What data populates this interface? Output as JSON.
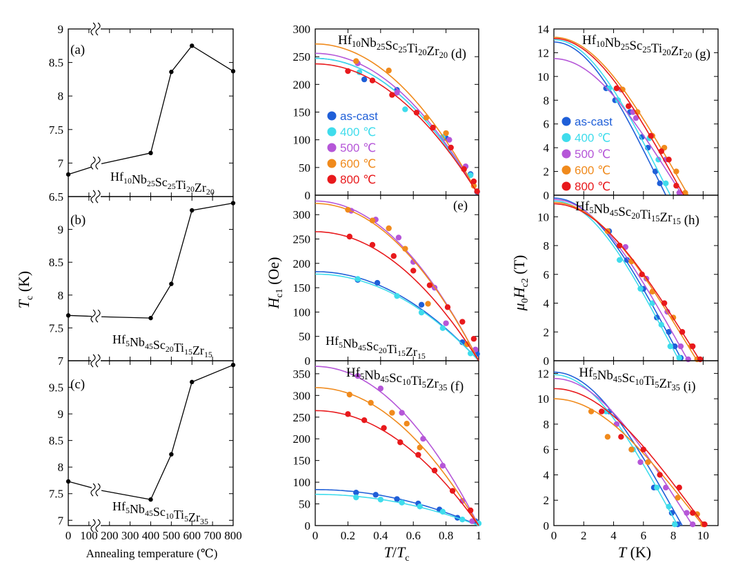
{
  "figure": {
    "x_label_left": "Annealing temperature (℃)",
    "x_label_mid_main": "T",
    "x_label_mid_sep": "/",
    "x_label_mid_den": "T",
    "x_label_mid_den_sub": "c",
    "x_label_right_main": "T",
    "x_label_right_unit": " (K)",
    "y_label_left_main": "T",
    "y_label_left_sub": "c",
    "y_label_left_unit": " (K)",
    "y_label_mid_main": "H",
    "y_label_mid_sub": "c1",
    "y_label_mid_unit": " (Oe)",
    "y_label_right_mu": "μ",
    "y_label_right_mu_sub": "0",
    "y_label_right_main": "H",
    "y_label_right_sub": "c2",
    "y_label_right_unit": " (T)"
  },
  "legend": [
    {
      "label": "as-cast",
      "color": "#1f5fd8"
    },
    {
      "label": "400 ℃",
      "color": "#3fdcec"
    },
    {
      "label": "500 ℃",
      "color": "#b556d8"
    },
    {
      "label": "600 ℃",
      "color": "#f08a1c"
    },
    {
      "label": "800 ℃",
      "color": "#e8191c"
    }
  ],
  "chart_data": [
    {
      "id": "a",
      "panel": "(a)",
      "type": "line",
      "compound": [
        [
          "Hf",
          "10"
        ],
        [
          "Nb",
          "25"
        ],
        [
          "Sc",
          "25"
        ],
        [
          "Ti",
          "20"
        ],
        [
          "Zr",
          "20"
        ]
      ],
      "x": [
        0,
        400,
        500,
        600,
        800
      ],
      "values": [
        6.83,
        7.15,
        8.36,
        8.75,
        8.37
      ],
      "ylim": [
        6.5,
        9.0
      ],
      "yticks": [
        6.5,
        7,
        7.5,
        8,
        8.5,
        9
      ],
      "xlim": [
        0,
        800
      ],
      "xticks": [
        0,
        100,
        200,
        300,
        400,
        500,
        600,
        700,
        800
      ],
      "xlabel": "Annealing temperature (℃)",
      "ylabel": "Tc (K)"
    },
    {
      "id": "b",
      "panel": "(b)",
      "type": "line",
      "compound": [
        [
          "Hf",
          "5"
        ],
        [
          "Nb",
          "45"
        ],
        [
          "Sc",
          "20"
        ],
        [
          "Ti",
          "15"
        ],
        [
          "Zr",
          "15"
        ]
      ],
      "x": [
        0,
        400,
        500,
        600,
        800
      ],
      "values": [
        7.69,
        7.65,
        8.17,
        9.29,
        9.4
      ],
      "ylim": [
        7.0,
        9.5
      ],
      "yticks": [
        7,
        7.5,
        8,
        8.5,
        9
      ],
      "xlim": [
        0,
        800
      ]
    },
    {
      "id": "c",
      "panel": "(c)",
      "type": "line",
      "compound": [
        [
          "Hf",
          "5"
        ],
        [
          "Nb",
          "45"
        ],
        [
          "Sc",
          "10"
        ],
        [
          "Ti",
          "5"
        ],
        [
          "Zr",
          "35"
        ]
      ],
      "x": [
        0,
        400,
        500,
        600,
        800
      ],
      "values": [
        7.73,
        7.39,
        8.24,
        9.6,
        9.92
      ],
      "ylim": [
        6.9,
        10.0
      ],
      "yticks": [
        7,
        7.5,
        8,
        8.5,
        9,
        9.5
      ],
      "xlim": [
        0,
        800
      ]
    },
    {
      "id": "d",
      "panel": "(d)",
      "type": "scatter",
      "compound": [
        [
          "Hf",
          "10"
        ],
        [
          "Nb",
          "25"
        ],
        [
          "Sc",
          "25"
        ],
        [
          "Ti",
          "20"
        ],
        [
          "Zr",
          "20"
        ]
      ],
      "xlim": [
        0,
        1
      ],
      "ylim": [
        0,
        300
      ],
      "xticks": [
        0,
        0.2,
        0.4,
        0.6,
        0.8,
        1
      ],
      "yticks": [
        0,
        50,
        100,
        150,
        200,
        250,
        300
      ],
      "series": [
        {
          "name": "as-cast",
          "fit_y0": 247,
          "x": [
            0.3,
            0.5,
            0.8,
            0.95,
            0.99
          ],
          "values": [
            209,
            190,
            103,
            38,
            6
          ]
        },
        {
          "name": "400 ℃",
          "fit_y0": 247,
          "x": [
            0.27,
            0.55,
            0.78,
            0.95
          ],
          "values": [
            222,
            155,
            105,
            36
          ]
        },
        {
          "name": "500 ℃",
          "fit_y0": 256,
          "x": [
            0.26,
            0.5,
            0.82,
            0.92
          ],
          "values": [
            238,
            185,
            100,
            52
          ]
        },
        {
          "name": "600 ℃",
          "fit_y0": 273,
          "x": [
            0.25,
            0.45,
            0.68,
            0.8,
            0.97
          ],
          "values": [
            242,
            225,
            140,
            112,
            17
          ]
        },
        {
          "name": "800 ℃",
          "fit_y0": 237,
          "x": [
            0.2,
            0.35,
            0.47,
            0.62,
            0.72,
            0.83,
            0.91,
            0.97,
            0.99
          ],
          "values": [
            224,
            207,
            181,
            149,
            122,
            86,
            47,
            25,
            7
          ]
        }
      ]
    },
    {
      "id": "e",
      "panel": "(e)",
      "type": "scatter",
      "compound": [
        [
          "Hf",
          "5"
        ],
        [
          "Nb",
          "45"
        ],
        [
          "Sc",
          "20"
        ],
        [
          "Ti",
          "15"
        ],
        [
          "Zr",
          "15"
        ]
      ],
      "xlim": [
        0,
        1
      ],
      "ylim": [
        0,
        340
      ],
      "xticks": [
        0,
        0.2,
        0.4,
        0.6,
        0.8,
        1
      ],
      "yticks": [
        0,
        50,
        100,
        150,
        200,
        250,
        300
      ],
      "series": [
        {
          "name": "as-cast",
          "fit_y0": 183,
          "x": [
            0.26,
            0.38,
            0.65,
            0.9,
            0.99
          ],
          "values": [
            166,
            160,
            115,
            38,
            14
          ]
        },
        {
          "name": "400 ℃",
          "fit_y0": 178,
          "x": [
            0.26,
            0.5,
            0.65,
            0.78,
            0.95
          ],
          "values": [
            168,
            133,
            99,
            67,
            15
          ]
        },
        {
          "name": "500 ℃",
          "fit_y0": 328,
          "x": [
            0.22,
            0.37,
            0.51,
            0.6,
            0.73,
            0.8,
            0.98
          ],
          "values": [
            308,
            290,
            253,
            203,
            150,
            77,
            23
          ]
        },
        {
          "name": "600 ℃",
          "fit_y0": 323,
          "x": [
            0.2,
            0.35,
            0.45,
            0.55,
            0.69,
            0.93
          ],
          "values": [
            310,
            288,
            272,
            230,
            117,
            34
          ]
        },
        {
          "name": "800 ℃",
          "fit_y0": 265,
          "x": [
            0.21,
            0.35,
            0.48,
            0.6,
            0.7,
            0.81,
            0.9,
            0.97
          ],
          "values": [
            255,
            238,
            215,
            185,
            155,
            110,
            80,
            45
          ]
        }
      ]
    },
    {
      "id": "f",
      "panel": "(f)",
      "type": "scatter",
      "compound": [
        [
          "Hf",
          "5"
        ],
        [
          "Nb",
          "45"
        ],
        [
          "Sc",
          "10"
        ],
        [
          "Ti",
          "5"
        ],
        [
          "Zr",
          "35"
        ]
      ],
      "xlim": [
        0,
        1
      ],
      "ylim": [
        0,
        380
      ],
      "xticks": [
        0,
        0.2,
        0.4,
        0.6,
        0.8,
        1
      ],
      "yticks": [
        0,
        50,
        100,
        150,
        200,
        250,
        300,
        350
      ],
      "series": [
        {
          "name": "as-cast",
          "fit_y0": 83,
          "x": [
            0.25,
            0.37,
            0.5,
            0.63,
            0.76,
            0.87,
            0.98
          ],
          "values": [
            76,
            71,
            61,
            51,
            37,
            18,
            10
          ]
        },
        {
          "name": "400 ℃",
          "fit_y0": 72,
          "x": [
            0.25,
            0.4,
            0.53,
            0.64,
            0.78,
            0.9,
            1.0
          ],
          "values": [
            65,
            60,
            53,
            44,
            32,
            14,
            5
          ]
        },
        {
          "name": "500 ℃",
          "fit_y0": 367,
          "x": [
            0.26,
            0.4,
            0.53,
            0.66,
            0.78,
            0.9,
            0.96
          ],
          "values": [
            345,
            316,
            260,
            200,
            138,
            57,
            10
          ]
        },
        {
          "name": "600 ℃",
          "fit_y0": 318,
          "x": [
            0.21,
            0.34,
            0.47,
            0.56,
            0.64
          ],
          "values": [
            302,
            283,
            260,
            235,
            180
          ]
        },
        {
          "name": "800 ℃",
          "fit_y0": 265,
          "x": [
            0.2,
            0.3,
            0.42,
            0.52,
            0.63,
            0.73,
            0.84,
            0.95
          ],
          "values": [
            257,
            243,
            225,
            192,
            163,
            127,
            80,
            35
          ]
        }
      ]
    },
    {
      "id": "g",
      "panel": "(g)",
      "type": "scatter",
      "compound": [
        [
          "Hf",
          "10"
        ],
        [
          "Nb",
          "25"
        ],
        [
          "Sc",
          "25"
        ],
        [
          "Ti",
          "20"
        ],
        [
          "Zr",
          "20"
        ]
      ],
      "xlim": [
        0,
        11
      ],
      "ylim": [
        0,
        14
      ],
      "xticks": [
        0,
        2,
        4,
        6,
        8,
        10
      ],
      "yticks": [
        0,
        2,
        4,
        6,
        8,
        10,
        12,
        14
      ],
      "series": [
        {
          "name": "as-cast",
          "fit_y0": 12.9,
          "fit_tc": 7.5,
          "x": [
            3.5,
            4.1,
            5.1,
            5.9,
            6.3,
            6.8,
            7.1
          ],
          "values": [
            9.0,
            8.0,
            7.0,
            4.9,
            4.0,
            2.0,
            1.0
          ]
        },
        {
          "name": "400 ℃",
          "fit_y0": 13.1,
          "fit_tc": 7.8,
          "x": [
            3.7,
            4.3,
            6.4,
            7.0,
            7.5
          ],
          "values": [
            9.0,
            8.0,
            4.8,
            3.0,
            1.0
          ]
        },
        {
          "name": "500 ℃",
          "fit_y0": 11.5,
          "fit_tc": 8.6,
          "x": [
            4.5,
            5.3,
            5.5,
            6.5,
            7.5,
            8.4
          ],
          "values": [
            8.9,
            7.0,
            6.5,
            5.0,
            3.0,
            0.2
          ]
        },
        {
          "name": "600 ℃",
          "fit_y0": 13.3,
          "fit_tc": 9.0,
          "x": [
            4.6,
            5.6,
            6.6,
            7.4,
            8.2,
            8.8
          ],
          "values": [
            8.9,
            7.0,
            5.0,
            4.0,
            2.0,
            0.2
          ]
        },
        {
          "name": "800 ℃",
          "fit_y0": 13.2,
          "fit_tc": 8.7,
          "x": [
            4.2,
            5.0,
            6.5,
            7.2,
            7.7,
            8.2
          ],
          "values": [
            9.0,
            7.5,
            5.0,
            3.7,
            3.0,
            0.8
          ]
        }
      ]
    },
    {
      "id": "h",
      "panel": "(h)",
      "type": "scatter",
      "compound": [
        [
          "Hf",
          "5"
        ],
        [
          "Nb",
          "45"
        ],
        [
          "Sc",
          "20"
        ],
        [
          "Ti",
          "15"
        ],
        [
          "Zr",
          "15"
        ]
      ],
      "xlim": [
        0,
        11
      ],
      "ylim": [
        0,
        11.5
      ],
      "xticks": [
        0,
        2,
        4,
        6,
        8,
        10
      ],
      "yticks": [
        0,
        2,
        4,
        6,
        8,
        10
      ],
      "series": [
        {
          "name": "as-cast",
          "fit_y0": 11.3,
          "fit_tc": 8.6,
          "x": [
            3.7,
            4.9,
            6.0,
            6.9,
            7.7,
            8.1,
            8.5
          ],
          "values": [
            9.0,
            7.0,
            5.0,
            3.0,
            2.0,
            1.0,
            0.2
          ]
        },
        {
          "name": "400 ℃",
          "fit_y0": 11.1,
          "fit_tc": 8.4,
          "x": [
            4.4,
            5.8,
            6.6,
            7.2,
            7.8,
            8.4
          ],
          "values": [
            7.0,
            5.0,
            4.0,
            2.5,
            1.0,
            0.2
          ]
        },
        {
          "name": "500 ℃",
          "fit_y0": 11.2,
          "fit_tc": 9.0,
          "x": [
            4.8,
            6.2,
            7.6,
            8.5,
            9.0
          ],
          "values": [
            7.9,
            5.7,
            3.4,
            1.0,
            0.1
          ]
        },
        {
          "name": "600 ℃",
          "fit_y0": 11.0,
          "fit_tc": 9.6,
          "x": [
            3.6,
            5.2,
            6.6,
            8.0,
            9.2,
            9.6
          ],
          "values": [
            9.0,
            6.9,
            4.8,
            3.0,
            1.0,
            0.1
          ]
        },
        {
          "name": "800 ℃",
          "fit_y0": 10.9,
          "fit_tc": 9.8,
          "x": [
            4.4,
            5.9,
            7.4,
            8.6,
            9.3,
            9.8
          ],
          "values": [
            8.0,
            6.0,
            4.0,
            2.0,
            1.0,
            0.1
          ]
        }
      ]
    },
    {
      "id": "i",
      "panel": "(i)",
      "type": "scatter",
      "compound": [
        [
          "Hf",
          "5"
        ],
        [
          "Nb",
          "45"
        ],
        [
          "Sc",
          "10"
        ],
        [
          "Ti",
          "5"
        ],
        [
          "Zr",
          "35"
        ]
      ],
      "xlim": [
        0,
        11
      ],
      "ylim": [
        0,
        13
      ],
      "xticks": [
        0,
        2,
        4,
        6,
        8,
        10
      ],
      "yticks": [
        0,
        2,
        4,
        6,
        8,
        10,
        12
      ],
      "series": [
        {
          "name": "as-cast",
          "fit_y0": 12.1,
          "fit_tc": 8.6,
          "x": [
            3.7,
            5.2,
            6.7,
            7.9,
            8.3
          ],
          "values": [
            9.0,
            6.0,
            3.0,
            1.0,
            0.1
          ]
        },
        {
          "name": "400 ℃",
          "fit_y0": 11.9,
          "fit_tc": 8.3,
          "x": [
            3.5,
            5.3,
            6.9,
            7.7,
            8.1
          ],
          "values": [
            9.0,
            6.0,
            3.0,
            1.5,
            0.1
          ]
        },
        {
          "name": "500 ℃",
          "fit_y0": 11.6,
          "fit_tc": 9.3,
          "x": [
            4.2,
            5.8,
            7.5,
            8.9,
            9.3
          ],
          "values": [
            8.0,
            5.0,
            3.0,
            1.0,
            0.1
          ]
        },
        {
          "name": "600 ℃",
          "fit_y0": 10.0,
          "fit_tc": 10.0,
          "x": [
            2.5,
            3.6,
            5.2,
            6.3,
            8.3,
            9.6,
            10.0
          ],
          "values": [
            9.0,
            7.0,
            6.0,
            5.0,
            2.2,
            0.9,
            0.1
          ]
        },
        {
          "name": "800 ℃",
          "fit_y0": 10.8,
          "fit_tc": 10.1,
          "x": [
            3.2,
            4.5,
            6.0,
            7.1,
            8.4,
            9.3,
            10.1
          ],
          "values": [
            9.0,
            7.0,
            6.0,
            4.0,
            3.0,
            1.0,
            0.1
          ]
        }
      ]
    }
  ]
}
